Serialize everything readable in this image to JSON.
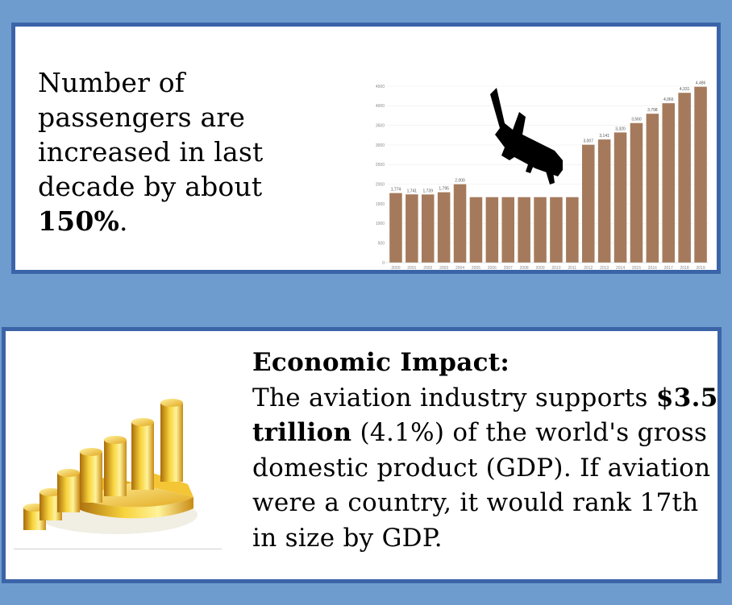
{
  "top_panel": {
    "text_prefix": "Number of passengers are increased in last decade by about ",
    "text_bold": "150%",
    "text_suffix": "."
  },
  "bottom_panel": {
    "heading": "Economic Impact:",
    "line_prefix": "The aviation industry supports ",
    "bold_amount": "$3.5 trillion",
    "line_suffix": " (4.1%) of the world's gross domestic product (GDP). If aviation were a country, it would rank 17th in size by GDP."
  },
  "icons": {
    "plane": "airplane-silhouette-icon",
    "coins": "gold-coins-pie-chart-icon"
  },
  "colors": {
    "background": "#6f9ccf",
    "panel_border": "#3b64a8",
    "bar": "#a57a5c"
  },
  "chart_data": {
    "type": "bar",
    "categories": [
      "2000",
      "2001",
      "2002",
      "2003",
      "2004",
      "2005",
      "2006",
      "2007",
      "2008",
      "2009",
      "2010",
      "2011",
      "2012",
      "2013",
      "2014",
      "2015",
      "2016",
      "2017",
      "2018",
      "2019"
    ],
    "values": [
      1774,
      1741,
      1739,
      1795,
      2000,
      1670,
      1670,
      1670,
      1670,
      1670,
      1670,
      1670,
      3007,
      3141,
      3320,
      3560,
      3798,
      4066,
      4331,
      4486
    ],
    "data_labels": [
      "1,774",
      "1,741",
      "1,739",
      "1,795",
      "2,000",
      "",
      "",
      "",
      "",
      "",
      "",
      "",
      "3,007",
      "3,141",
      "3,320",
      "3,560",
      "3,798",
      "4,066",
      "4,331",
      "4,486"
    ],
    "yticks": [
      "0",
      "500",
      "1000",
      "1500",
      "2000",
      "2500",
      "3000",
      "3500",
      "4000",
      "4500"
    ],
    "ylim": [
      0,
      4500
    ],
    "title": "",
    "xlabel": "",
    "ylabel": "",
    "grid": true
  }
}
